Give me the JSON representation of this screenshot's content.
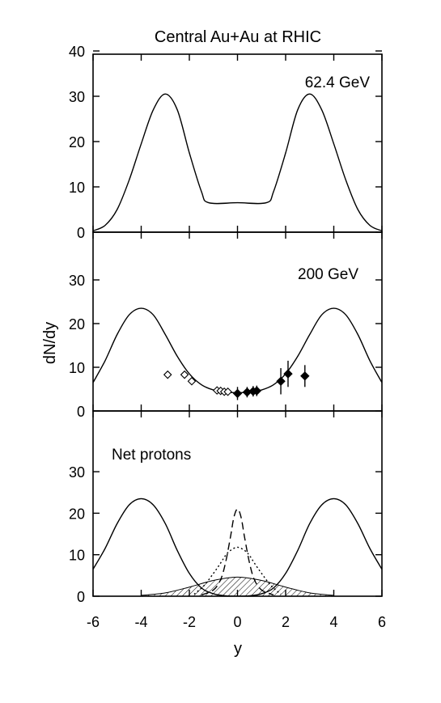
{
  "figure": {
    "title": "Central Au+Au at RHIC",
    "ylabel": "dN/dy",
    "xlabel": "y"
  },
  "chart_data": [
    {
      "type": "line",
      "panel": "top",
      "annotation": "62.4 GeV",
      "xlim": [
        -6,
        6
      ],
      "ylim": [
        0,
        40
      ],
      "yticks": [
        0,
        10,
        20,
        30,
        40
      ],
      "xticks": [
        -6,
        -4,
        -2,
        0,
        2,
        4,
        6
      ],
      "series": [
        {
          "x": [
            -6,
            -5.5,
            -5,
            -4.5,
            -4,
            -3.5,
            -3,
            -2.5,
            -2,
            -1.5,
            -1.2,
            0,
            1.2,
            1.5,
            2,
            2.5,
            3,
            3.5,
            4,
            4.5,
            5,
            5.5,
            6
          ],
          "y": [
            0.3,
            1.5,
            5,
            11.5,
            19.5,
            27,
            30.5,
            27,
            17.5,
            9,
            6.5,
            6.5,
            6.5,
            9,
            17.5,
            27,
            30.5,
            27,
            19.5,
            11.5,
            5,
            1.5,
            0.3
          ]
        }
      ]
    },
    {
      "type": "line",
      "panel": "middle",
      "annotation": "200 GeV",
      "xlim": [
        -6,
        6
      ],
      "ylim": [
        0,
        40
      ],
      "yticks": [
        0,
        10,
        20,
        30
      ],
      "xticks": [
        -6,
        -4,
        -2,
        0,
        2,
        4,
        6
      ],
      "series": [
        {
          "x": [
            -6,
            -5.5,
            -5,
            -4.5,
            -4,
            -3.5,
            -3,
            -2.5,
            -2,
            -1.5,
            -1,
            -0.5,
            0,
            0.5,
            1,
            1.5,
            2,
            2.5,
            3,
            3.5,
            4,
            4.5,
            5,
            5.5,
            6
          ],
          "y": [
            6.5,
            11.5,
            17.5,
            22,
            23.5,
            22,
            17.5,
            12.5,
            8.5,
            6,
            4.8,
            4.3,
            4.2,
            4.3,
            4.8,
            6,
            8.5,
            12.5,
            17.5,
            22,
            23.5,
            22,
            17.5,
            11.5,
            6.5
          ]
        }
      ],
      "points_open": [
        {
          "x": -2.9,
          "y": 8.3
        },
        {
          "x": -2.2,
          "y": 8.3
        },
        {
          "x": -1.9,
          "y": 6.8
        },
        {
          "x": -0.85,
          "y": 4.7
        },
        {
          "x": -0.7,
          "y": 4.6
        },
        {
          "x": -0.55,
          "y": 4.4
        },
        {
          "x": -0.4,
          "y": 4.4
        }
      ],
      "points_filled": [
        {
          "x": 0.0,
          "y": 4.0,
          "err": 1.5
        },
        {
          "x": 0.4,
          "y": 4.3,
          "err": 1.2
        },
        {
          "x": 0.65,
          "y": 4.5,
          "err": 1.2
        },
        {
          "x": 0.8,
          "y": 4.6,
          "err": 1.2
        },
        {
          "x": 1.8,
          "y": 6.8,
          "err": 3.0
        },
        {
          "x": 2.1,
          "y": 8.5,
          "err": 3.0
        },
        {
          "x": 2.8,
          "y": 8.0,
          "err": 2.5
        }
      ]
    },
    {
      "type": "line",
      "panel": "bottom",
      "annotation": "Net protons",
      "xlim": [
        -6,
        6
      ],
      "ylim": [
        0,
        40
      ],
      "yticks": [
        0,
        10,
        20,
        30
      ],
      "xticks": [
        -6,
        -4,
        -2,
        0,
        2,
        4,
        6
      ],
      "xticklabels": [
        "-6",
        "-4",
        "-2",
        "0",
        "2",
        "4",
        "6"
      ],
      "series": [
        {
          "style": "solid",
          "x": [
            -6,
            -5.5,
            -5,
            -4.5,
            -4,
            -3.5,
            -3,
            -2.5,
            -2,
            -1.5,
            -1,
            -0.5,
            0,
            0.5,
            1,
            1.5,
            2,
            2.5,
            3,
            3.5,
            4,
            4.5,
            5,
            5.5,
            6
          ],
          "y": [
            6.5,
            11.5,
            17.5,
            22,
            23.5,
            22,
            17.5,
            11,
            5.5,
            2,
            0.6,
            0.1,
            0,
            0.1,
            0.6,
            2,
            5.5,
            11,
            17.5,
            22,
            23.5,
            22,
            17.5,
            11.5,
            6.5
          ]
        },
        {
          "style": "dashed",
          "x": [
            -1.5,
            -1,
            -0.7,
            -0.5,
            -0.3,
            -0.15,
            0,
            0.15,
            0.3,
            0.5,
            0.7,
            1,
            1.5
          ],
          "y": [
            0.3,
            1.5,
            4,
            8,
            14,
            19,
            21,
            19,
            14,
            8,
            4,
            1.5,
            0.3
          ]
        },
        {
          "style": "dotted",
          "x": [
            -1.8,
            -1.4,
            -1,
            -0.7,
            -0.5,
            -0.3,
            0,
            0.3,
            0.5,
            0.7,
            1,
            1.4,
            1.8
          ],
          "y": [
            0.5,
            2.5,
            5.5,
            8,
            9.8,
            11,
            11.8,
            11,
            9.8,
            8,
            5.5,
            2.5,
            0.5
          ]
        }
      ],
      "hatched_band": {
        "x": [
          -4,
          -3,
          -2,
          -1,
          0,
          1,
          2,
          3,
          4
        ],
        "y": [
          0.2,
          0.8,
          2.2,
          3.8,
          4.6,
          3.8,
          2.2,
          0.8,
          0.2
        ]
      }
    }
  ]
}
